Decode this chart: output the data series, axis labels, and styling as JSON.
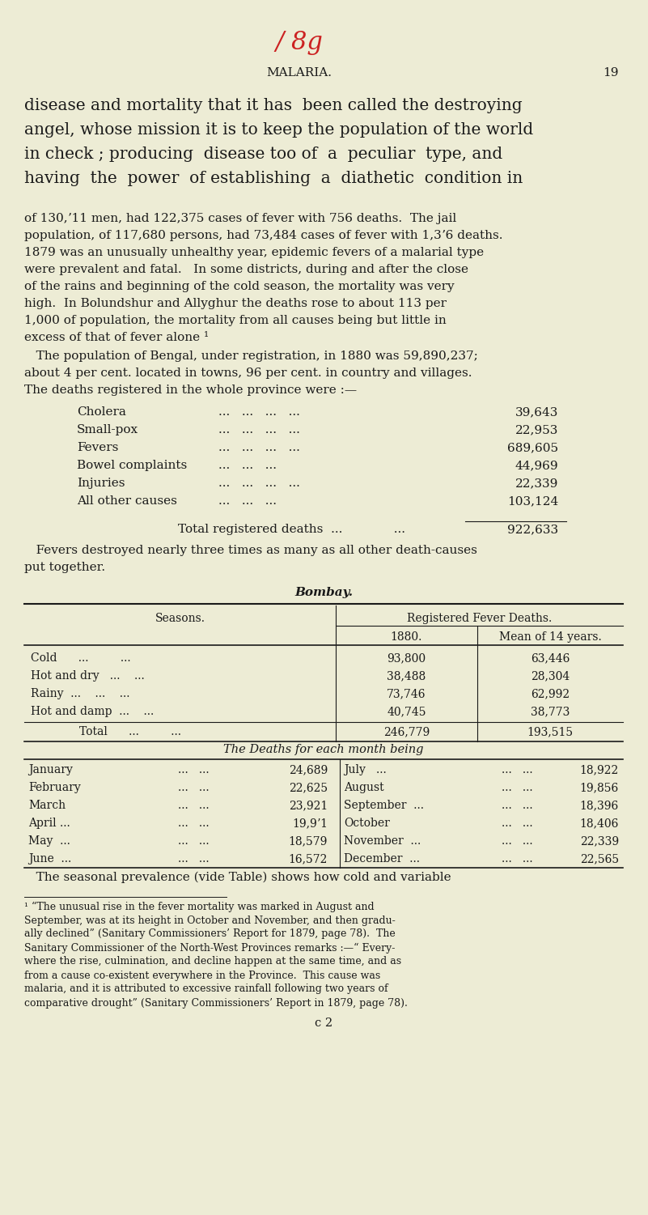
{
  "bg_color": "#edecd5",
  "text_color": "#1a1a1a",
  "page_number": "19",
  "handwritten": "/ 8g",
  "header": "MALARIA.",
  "para1_lines": [
    "disease and mortality that it has  been called the destroying",
    "angel, whose mission it is to keep the population of the world",
    "in check ; producing  disease too of  a  peculiar  type, and",
    "having  the  power  of establishing  a  diathetic  condition in"
  ],
  "para2_lines": [
    "of 130,ʼ11 men, had 122,375 cases of fever with 756 deaths.  The jail",
    "population, of 117,680 persons, had 73,484 cases of fever with 1,3ʼ6 deaths.",
    "1879 was an unusually unhealthy year, epidemic fevers of a malarial type",
    "were prevalent and fatal.   In some districts, during and after the close",
    "of the rains and beginning of the cold season, the mortality was very",
    "high.  In Bolundshur and Allyghur the deaths rose to about 113 per",
    "1,000 of population, the mortality from all causes being but little in",
    "excess of that of fever alone ¹"
  ],
  "para3_lines": [
    "   The population of Bengal, under registration, in 1880 was 59,890,237;",
    "about 4 per cent. located in towns, 96 per cent. in country and villages.",
    "The deaths registered in the whole province were :—"
  ],
  "causes": [
    [
      "Cholera",
      "...   ...   ...   ...",
      "39,643"
    ],
    [
      "Small-pox",
      "...   ...   ...   ...",
      "22,953"
    ],
    [
      "Fevers",
      "...   ...   ...   ...",
      "689,605"
    ],
    [
      "Bowel complaints",
      "...   ...   ...",
      "44,969"
    ],
    [
      "Injuries",
      "...   ...   ...   ...",
      "22,339"
    ],
    [
      "All other causes",
      "...   ...   ...",
      "103,124"
    ]
  ],
  "total_label": "Total registered deaths",
  "total_dots": "...             ...",
  "total_value": "922,633",
  "para4_lines": [
    "   Fevers destroyed nearly three times as many as all other death-causes",
    "put together."
  ],
  "bombay_title": "Bombay.",
  "seasons_header": "Seasons.",
  "rfh_header": "Registered Fever Deaths.",
  "col1_header": "1880.",
  "col2_header": "Mean of 14 years.",
  "season_rows": [
    [
      "Cold      ...         ...",
      "93,800",
      "63,446"
    ],
    [
      "Hot and dry   ...    ...",
      "38,488",
      "28,304"
    ],
    [
      "Rainy  ...    ...    ...",
      "73,746",
      "62,992"
    ],
    [
      "Hot and damp  ...    ...",
      "40,745",
      "38,773"
    ]
  ],
  "season_total": [
    "Total      ...         ...",
    "246,779",
    "193,515"
  ],
  "monthly_title": "The Deaths for each month being",
  "monthly_left": [
    [
      "January",
      "...   ...",
      "24,689"
    ],
    [
      "February",
      "...   ...",
      "22,625"
    ],
    [
      "March",
      "...   ...",
      "23,921"
    ],
    [
      "April ...",
      "...   ...",
      "19,9ʼ1"
    ],
    [
      "May  ...",
      "...   ...",
      "18,579"
    ],
    [
      "June  ...",
      "...   ...",
      "16,572"
    ]
  ],
  "monthly_right": [
    [
      "July   ...",
      "...   ...",
      "18,922"
    ],
    [
      "August",
      "...   ...",
      "19,856"
    ],
    [
      "September  ...",
      "...   ...",
      "18,396"
    ],
    [
      "October",
      "...   ...",
      "18,406"
    ],
    [
      "November  ...",
      "...   ...",
      "22,339"
    ],
    [
      "December  ...",
      "...   ...",
      "22,565"
    ]
  ],
  "para5": "   The seasonal prevalence (vide Table) shows how cold and variable",
  "fn_lines": [
    "¹ “The unusual rise in the fever mortality was marked in August and",
    "September, was at its height in October and November, and then gradu-",
    "ally declined” (Sanitary Commissioners’ Report for 1879, page 78).  The",
    "Sanitary Commissioner of the North-West Provinces remarks :—“ Every-",
    "where the rise, culmination, and decline happen at the same time, and as",
    "from a cause co-existent everywhere in the Province.  This cause was",
    "malaria, and it is attributed to excessive rainfall following two years of",
    "comparative drought” (Sanitary Commissioners’ Report in 1879, page 78)."
  ],
  "fn2": "c 2"
}
